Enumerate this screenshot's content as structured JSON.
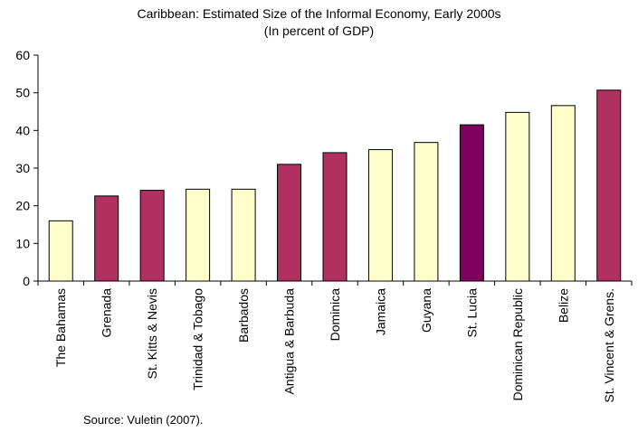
{
  "chart_data": {
    "type": "bar",
    "title": "Caribbean: Estimated Size of the Informal Economy, Early 2000s",
    "subtitle": "(In percent of GDP)",
    "source": "Source: Vuletin (2007).",
    "categories": [
      "The Bahamas",
      "Grenada",
      "St. Kitts & Nevis",
      "Trinidad & Tobago",
      "Barbados",
      "Antigua & Barbuda",
      "Dominica",
      "Jamaica",
      "Guyana",
      "St. Lucia",
      "Dominican Republic",
      "Belize",
      "St. Vincent & Grens."
    ],
    "values": [
      16,
      22.6,
      24.1,
      24.4,
      24.4,
      31,
      34.1,
      34.9,
      36.8,
      41.5,
      44.8,
      46.6,
      50.7
    ],
    "bar_colors": [
      "#FFFFCC",
      "#B03060",
      "#B03060",
      "#FFFFCC",
      "#FFFFCC",
      "#B03060",
      "#B03060",
      "#FFFFCC",
      "#FFFFCC",
      "#800060",
      "#FFFFCC",
      "#FFFFCC",
      "#B03060"
    ],
    "ylim": [
      0,
      60
    ],
    "yticks": [
      0,
      10,
      20,
      30,
      40,
      50,
      60
    ],
    "xlabel": "",
    "ylabel": "",
    "grid": false,
    "legend": "none"
  }
}
